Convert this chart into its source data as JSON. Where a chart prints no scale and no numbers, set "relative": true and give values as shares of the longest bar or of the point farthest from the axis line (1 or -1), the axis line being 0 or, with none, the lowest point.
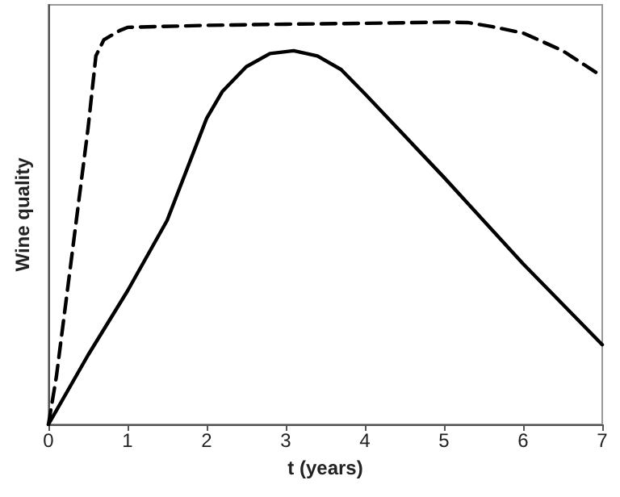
{
  "chart_data": {
    "type": "line",
    "xlabel": "t (years)",
    "ylabel": "Wine quality",
    "relative": true,
    "xlim": [
      0,
      7
    ],
    "xticks": [
      0,
      1,
      2,
      3,
      4,
      5,
      6,
      7
    ],
    "tick_labels": "x",
    "marker": "none",
    "grid": false,
    "series": [
      {
        "color": "#000000",
        "line_style": "dashed",
        "x": [
          0,
          0.1,
          0.3,
          0.5,
          0.6,
          0.7,
          0.9,
          1,
          2,
          3,
          4,
          5,
          5.3,
          5.6,
          6,
          6.5,
          7
        ],
        "values": [
          0,
          0.118,
          0.426,
          0.735,
          0.916,
          0.956,
          0.979,
          0.987,
          0.992,
          0.995,
          0.997,
          1,
          0.999,
          0.989,
          0.973,
          0.929,
          0.865
        ]
      },
      {
        "color": "#000000",
        "line_style": "solid",
        "x": [
          0,
          0.5,
          1,
          1.5,
          2,
          2.2,
          2.5,
          2.8,
          3.1,
          3.4,
          3.7,
          4,
          5,
          6,
          7
        ],
        "values": [
          0,
          0.172,
          0.332,
          0.507,
          0.761,
          0.828,
          0.889,
          0.922,
          0.929,
          0.916,
          0.882,
          0.822,
          0.614,
          0.399,
          0.198
        ]
      }
    ]
  }
}
